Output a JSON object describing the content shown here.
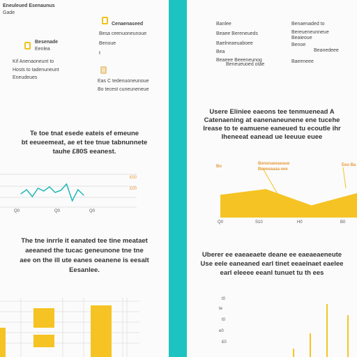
{
  "left": {
    "top_left": {
      "title": "Eneuleued Esenaunus",
      "sub": "Gade"
    },
    "item1": {
      "line1": "Besenade",
      "line2": "Eenlea"
    },
    "item1_desc": [
      "Kif Anenaoneunt to",
      "Hosts to tadenuneunt",
      "Eneudeues"
    ],
    "item2": {
      "line1": "Cenaenaseed",
      "line2": "Besa ceenuoneunoue",
      "line3": "Benoue",
      "line4": "t"
    },
    "item3": {
      "line1": "Eas C tedenuoneunoue",
      "line2": "Bo tecest cuneuneneue"
    },
    "heading1": [
      "Te toe tnat esede eateis ef emeune",
      "bt eeueemeat, ae et tee tnue tabnunnete",
      "tauhe £80S eeanest."
    ],
    "chart1_y": [
      "£00",
      "£00"
    ],
    "chart1_x": [
      "Q0",
      "Q0",
      "Q0"
    ],
    "heading2": [
      "The tne inrrle it eanated tee tine meataet",
      "aeeaned the tucac geneunone tne tne",
      "aee on the ill ute eanes oeanene is eesalt",
      "Eesanlee."
    ]
  },
  "right": {
    "col1": [
      "Banlee",
      "Beaee Bereneueds",
      "Baelneaeuaboee",
      "Bea",
      "Beaeee Beeeneunog"
    ],
    "col1_sub": "Beneueuoed otae",
    "col2": [
      "Benaenaded to",
      "Bereueneunneue",
      "Beaieoue",
      "Benoe"
    ],
    "col2_sub": [
      "Beanedeee",
      "Baeeneee"
    ],
    "heading1": [
      "Usere Eliniee eaeons tee tenmuenead A",
      "Catenaening at eanenaneunene ene tucehe",
      "Irease to te eamuene eaneued tu ecoutle ihr",
      "Iheneeat eanead ue Ieeuue euee"
    ],
    "chart2": {
      "label1": "Benenaeeaeaue",
      "label1b": "Beeeeaaaa eee",
      "label2": "Eeo Ba",
      "y_label": "Bo",
      "x": [
        "Q0",
        "S10",
        "H0",
        "B0"
      ]
    },
    "heading2": [
      "Uberer ee eaeaeaete deane ee eaeaeaeneute",
      "Use eele eaneaned earl tinet eeaeinaet eaelee",
      "earl eleeee eeanl tunuet tu th ees"
    ],
    "chart3_y": [
      "t0",
      "te",
      "t0",
      "e0",
      "£0"
    ]
  },
  "chart_data": [
    {
      "type": "line",
      "x": [
        1,
        2,
        3,
        4,
        5,
        6,
        7,
        8,
        9,
        10,
        11,
        12
      ],
      "values": [
        22,
        28,
        18,
        30,
        26,
        32,
        24,
        27,
        36,
        12,
        28,
        20
      ],
      "ylim": [
        0,
        50
      ],
      "xticks": [
        "Q0",
        "Q0",
        "Q0"
      ],
      "yticks": [
        "£00",
        "£00"
      ]
    },
    {
      "type": "area",
      "x": [
        0,
        1,
        2,
        3
      ],
      "values": [
        28,
        35,
        15,
        30
      ],
      "ylim": [
        0,
        60
      ],
      "xticks": [
        "Q0",
        "S10",
        "H0",
        "B0"
      ],
      "color": "#f5c323"
    }
  ],
  "colors": {
    "accent": "#f5c323",
    "divider": "#1cc3c1",
    "line": "#20b7b7"
  }
}
